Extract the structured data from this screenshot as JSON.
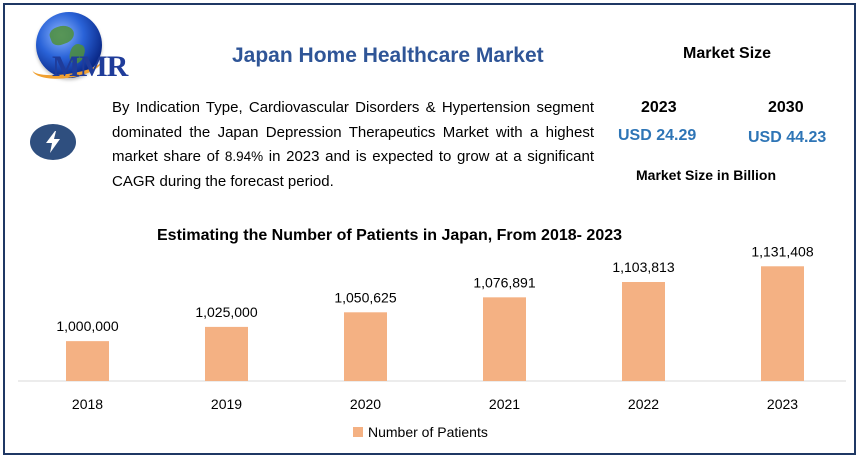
{
  "logo": {
    "text": "MMR"
  },
  "header": {
    "title": "Japan Home Healthcare Market"
  },
  "summary": {
    "icon": "lightning-bolt-icon",
    "text_before": "By Indication Type, Cardiovascular Disorders & Hypertension segment dominated the Japan Depression Therapeutics Market with a highest market share of",
    "share": "8.94%",
    "text_after": "in 2023 and is expected to grow at a significant CAGR during the forecast period."
  },
  "market_size": {
    "heading": "Market Size",
    "year_a": "2023",
    "value_a": "USD 24.29",
    "year_b": "2030",
    "value_b": "USD 44.23",
    "unit_note": "Market Size in Billion",
    "value_color": "#2e75b6"
  },
  "chart_data": {
    "type": "bar",
    "title": "Estimating the Number of Patients in Japan, From 2018- 2023",
    "categories": [
      "2018",
      "2019",
      "2020",
      "2021",
      "2022",
      "2023"
    ],
    "series": [
      {
        "name": "Number of Patients",
        "values": [
          1000000,
          1025000,
          1050625,
          1076891,
          1103813,
          1131408
        ],
        "color": "#f4b183"
      }
    ],
    "data_labels": [
      "1,000,000",
      "1,025,000",
      "1,050,625",
      "1,076,891",
      "1,103,813",
      "1,131,408"
    ],
    "ylim": [
      930000,
      1160000
    ],
    "xlabel": "",
    "ylabel": "",
    "grid": false,
    "legend": "bottom"
  }
}
